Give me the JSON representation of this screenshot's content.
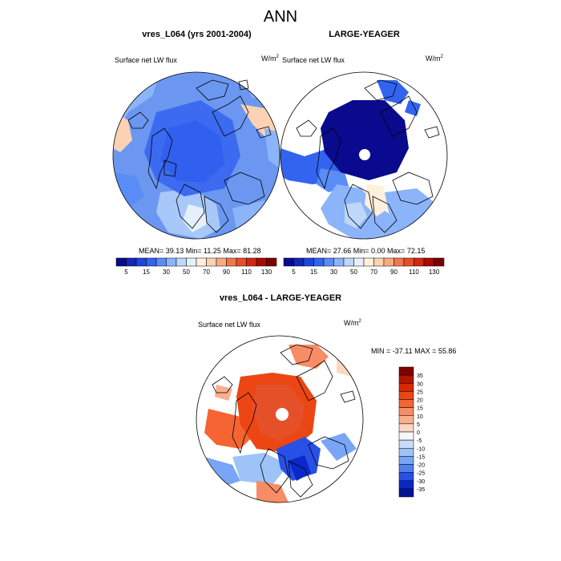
{
  "figure_title": "ANN",
  "panels": [
    {
      "title": "vres_L064 (yrs 2001-2004)",
      "variable": "Surface net LW flux",
      "units_base": "W/m",
      "units_exp": "2",
      "stats": "MEAN=  39.13  Min=  11.25  Max=  81.28"
    },
    {
      "title": "LARGE-YEAGER",
      "variable": "Surface net LW flux",
      "units_base": "W/m",
      "units_exp": "2",
      "stats": "MEAN=  27.66  Min=   0.00  Max=  72.15"
    },
    {
      "title": "vres_L064 - LARGE-YEAGER",
      "variable": "Surface net LW flux",
      "units_base": "W/m",
      "units_exp": "2",
      "stats": "MIN = -37.11 MAX =  55.86"
    }
  ],
  "colorbar_top": {
    "tick_labels": [
      "5",
      "15",
      "30",
      "50",
      "70",
      "90",
      "110",
      "130"
    ],
    "colors": [
      "#0a0a8c",
      "#1428b4",
      "#1e46dc",
      "#3264f0",
      "#5a8cf5",
      "#8cb4fa",
      "#bed7fa",
      "#e6f0fa",
      "#fff0dc",
      "#fcd2b4",
      "#faaa82",
      "#f07850",
      "#e65028",
      "#d22814",
      "#aa0a00",
      "#7d0000"
    ]
  },
  "colorbar_diff": {
    "tick_labels": [
      "35",
      "30",
      "25",
      "20",
      "15",
      "10",
      "5",
      "0",
      "-5",
      "-10",
      "-15",
      "-20",
      "-25",
      "-30",
      "-35"
    ],
    "colors": [
      "#820000",
      "#b41400",
      "#d72800",
      "#eb4614",
      "#f56432",
      "#f88c64",
      "#faaf8c",
      "#fcd7c3",
      "#f5f5fa",
      "#c8dcf8",
      "#9ec3f8",
      "#78a5f5",
      "#507ff0",
      "#2850e6",
      "#0a28c8",
      "#001496"
    ]
  }
}
